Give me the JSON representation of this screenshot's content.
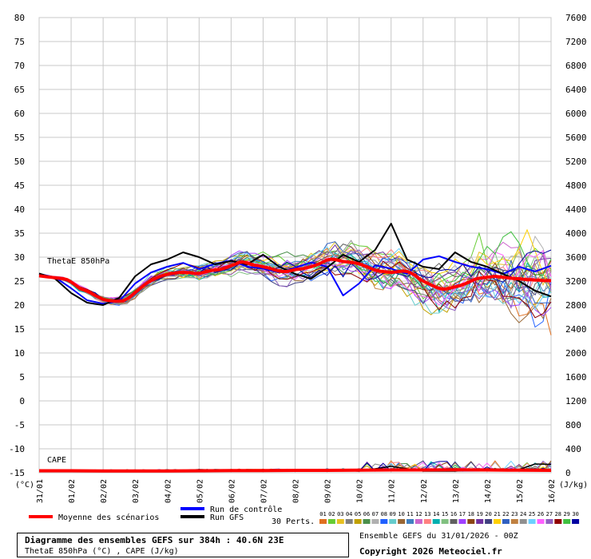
{
  "chart_data": {
    "type": "line",
    "title": "Diagramme des ensembles GEFS sur 384h : 40.6N 23E",
    "subtitle": "ThetaE 850hPa (°C) , CAPE (J/kg)",
    "left_axis": {
      "unit": "(°C)",
      "ticks": [
        80,
        75,
        70,
        65,
        60,
        55,
        50,
        45,
        40,
        35,
        30,
        25,
        20,
        15,
        10,
        5,
        0,
        -5,
        -10,
        -15
      ],
      "range": [
        -15,
        80
      ]
    },
    "right_axis": {
      "unit": "(J/kg)",
      "ticks": [
        7600,
        7200,
        6800,
        6400,
        6000,
        5600,
        5200,
        4800,
        4400,
        4000,
        3600,
        3200,
        2800,
        2400,
        2000,
        1600,
        1200,
        800,
        400,
        0
      ],
      "range": [
        0,
        7600
      ]
    },
    "x_labels": [
      "31/01",
      "01/02",
      "02/02",
      "03/02",
      "04/02",
      "05/02",
      "06/02",
      "07/02",
      "08/02",
      "09/02",
      "10/02",
      "11/02",
      "12/02",
      "13/02",
      "14/02",
      "15/02",
      "16/02"
    ],
    "grid": true,
    "panel_labels": {
      "thetae": "ThetaE 850hPa",
      "cape": "CAPE"
    },
    "series": [
      {
        "name": "Moyenne des scénarios",
        "color": "#ff0000",
        "x": [
          0,
          3,
          6,
          9,
          12,
          15,
          18,
          21,
          24,
          27,
          30,
          33,
          36,
          39,
          42,
          45,
          48,
          51,
          54,
          57,
          60,
          63,
          66,
          69,
          72,
          75,
          78,
          81,
          84,
          87,
          90,
          93,
          96,
          99,
          102,
          105,
          108,
          111,
          114,
          117,
          120,
          123,
          126,
          129,
          132,
          135,
          138,
          141,
          144,
          147,
          150,
          153,
          156,
          159,
          162,
          165,
          168,
          171,
          174,
          177,
          180,
          183,
          186,
          189,
          192,
          195,
          198,
          201,
          204,
          207,
          210,
          213,
          216,
          219,
          222,
          225,
          228,
          231,
          234,
          237,
          240,
          243,
          246,
          249,
          252,
          255,
          258,
          261,
          264,
          267,
          270,
          273,
          276,
          279,
          282,
          285,
          288,
          291,
          294,
          297,
          300,
          303,
          306,
          309,
          312,
          315,
          318,
          321,
          324,
          327,
          330,
          333,
          336,
          339,
          342,
          345,
          348,
          351,
          354,
          357,
          360,
          363,
          366,
          369,
          372,
          375,
          378,
          381,
          384
        ],
        "y": [
          26.1,
          26.0,
          25.9,
          25.8,
          25.7,
          25.6,
          25.5,
          25.3,
          24.8,
          24.2,
          23.6,
          23.2,
          22.9,
          22.5,
          22.0,
          21.6,
          21.2,
          21.0,
          20.9,
          20.8,
          20.8,
          20.9,
          21.3,
          21.9,
          22.6,
          23.3,
          24.0,
          24.6,
          25.1,
          25.5,
          25.9,
          26.2,
          26.4,
          26.6,
          26.7,
          26.8,
          26.8,
          26.8,
          26.7,
          26.6,
          26.6,
          26.8,
          27.0,
          27.2,
          27.3,
          27.4,
          27.6,
          27.9,
          28.2,
          28.5,
          28.9,
          29.0,
          28.8,
          28.5,
          28.3,
          28.2,
          28.0,
          27.8,
          27.6,
          27.3,
          27.1,
          27.0,
          27.0,
          27.2,
          27.4,
          27.5,
          27.6,
          27.8,
          28.0,
          28.3,
          28.6,
          29.0,
          29.4,
          29.6,
          29.5,
          29.3,
          29.1,
          29.0,
          28.9,
          28.8,
          28.6,
          28.3,
          28.0,
          27.6,
          27.3,
          27.1,
          27.0,
          26.9,
          26.8,
          26.9,
          27.0,
          27.1,
          27.0,
          26.7,
          26.2,
          25.5,
          25.0,
          24.6,
          24.2,
          23.8,
          23.5,
          23.3,
          23.4,
          23.6,
          23.8,
          24.0,
          24.3,
          24.6,
          25.0,
          25.4,
          25.6,
          25.7,
          25.8,
          25.9,
          26.0,
          25.9,
          25.8,
          25.7,
          25.6,
          25.5,
          25.5,
          25.4,
          25.3,
          25.3,
          25.2,
          25.2,
          25.1,
          25.1,
          25.1
        ]
      },
      {
        "name": "Run de contrôle",
        "color": "#0000ff",
        "x": [
          0,
          12,
          24,
          36,
          48,
          60,
          72,
          84,
          96,
          108,
          120,
          132,
          144,
          156,
          168,
          180,
          192,
          204,
          216,
          228,
          240,
          252,
          264,
          276,
          288,
          300,
          312,
          324,
          336,
          348,
          360,
          372,
          384
        ],
        "y": [
          26.5,
          25.8,
          23.5,
          21.0,
          20.3,
          20.8,
          24.5,
          26.8,
          28.0,
          28.8,
          27.5,
          28.6,
          29.3,
          28.0,
          27.6,
          26.8,
          27.8,
          28.9,
          28.0,
          22.0,
          24.5,
          28.3,
          27.6,
          26.5,
          29.5,
          30.2,
          29.0,
          28.0,
          27.5,
          26.5,
          28.0,
          27.0,
          28.2
        ]
      },
      {
        "name": "Run GFS",
        "color": "#000000",
        "x": [
          0,
          12,
          24,
          36,
          48,
          60,
          72,
          84,
          96,
          108,
          120,
          132,
          144,
          156,
          168,
          180,
          192,
          204,
          216,
          228,
          240,
          252,
          264,
          276,
          288,
          300,
          312,
          324,
          336,
          348,
          360,
          372,
          384
        ],
        "y": [
          26.6,
          25.5,
          22.5,
          20.5,
          20.0,
          21.5,
          26.0,
          28.5,
          29.5,
          31.0,
          30.0,
          28.5,
          29.2,
          28.5,
          30.5,
          28.0,
          26.5,
          25.5,
          27.8,
          30.5,
          29.0,
          31.5,
          37.0,
          29.5,
          28.0,
          27.5,
          31.0,
          29.0,
          28.0,
          26.5,
          25.0,
          23.0,
          21.8
        ]
      }
    ],
    "cape_series": [
      {
        "name": "Moyenne des scénarios",
        "color": "#ff0000",
        "x": [
          0,
          24,
          48,
          72,
          96,
          120,
          144,
          168,
          192,
          216,
          240,
          264,
          288,
          312,
          336,
          360,
          384
        ],
        "y": [
          10,
          10,
          5,
          5,
          5,
          10,
          15,
          15,
          20,
          20,
          25,
          30,
          30,
          35,
          30,
          25,
          20
        ]
      },
      {
        "name": "Run GFS",
        "color": "#000000",
        "x": [
          0,
          24,
          48,
          72,
          96,
          120,
          144,
          168,
          192,
          216,
          240,
          264,
          288,
          312,
          336,
          360,
          372,
          384
        ],
        "y": [
          0,
          0,
          0,
          0,
          0,
          40,
          20,
          20,
          0,
          40,
          0,
          120,
          0,
          0,
          60,
          40,
          180,
          170
        ]
      }
    ]
  },
  "legend": {
    "mean_label": "Moyenne des scénarios",
    "control_label": "Run de contrôle",
    "gfs_label": "Run GFS",
    "perts_label": "30 Perts.",
    "pert_numbers": [
      "01",
      "02",
      "03",
      "04",
      "05",
      "06",
      "07",
      "08",
      "09",
      "10",
      "11",
      "12",
      "13",
      "14",
      "15",
      "16",
      "17",
      "18",
      "19",
      "20",
      "21",
      "22",
      "23",
      "24",
      "25",
      "26",
      "27",
      "28",
      "29",
      "30"
    ],
    "pert_colors": [
      "#e07020",
      "#66cc33",
      "#e8c020",
      "#808080",
      "#c0a000",
      "#4b8f4b",
      "#b0b0b0",
      "#2060ff",
      "#66cccc",
      "#996633",
      "#4080c0",
      "#cc66cc",
      "#ff8080",
      "#00b0b0",
      "#80c080",
      "#606060",
      "#a040ff",
      "#8b4513",
      "#7030a0",
      "#404080",
      "#ffd000",
      "#3060c0",
      "#c08040",
      "#909090",
      "#6bd0ff",
      "#ff60ff",
      "#9060c0",
      "#900000",
      "#40c040",
      "#0000a0"
    ]
  },
  "footer": {
    "title": "Diagramme des ensembles GEFS sur 384h : 40.6N 23E",
    "subtitle": "ThetaE 850hPa (°C) , CAPE (J/kg)",
    "ensemble": "Ensemble GEFS du 31/01/2026 - 00Z",
    "copyright": "Copyright 2026 Meteociel.fr"
  }
}
